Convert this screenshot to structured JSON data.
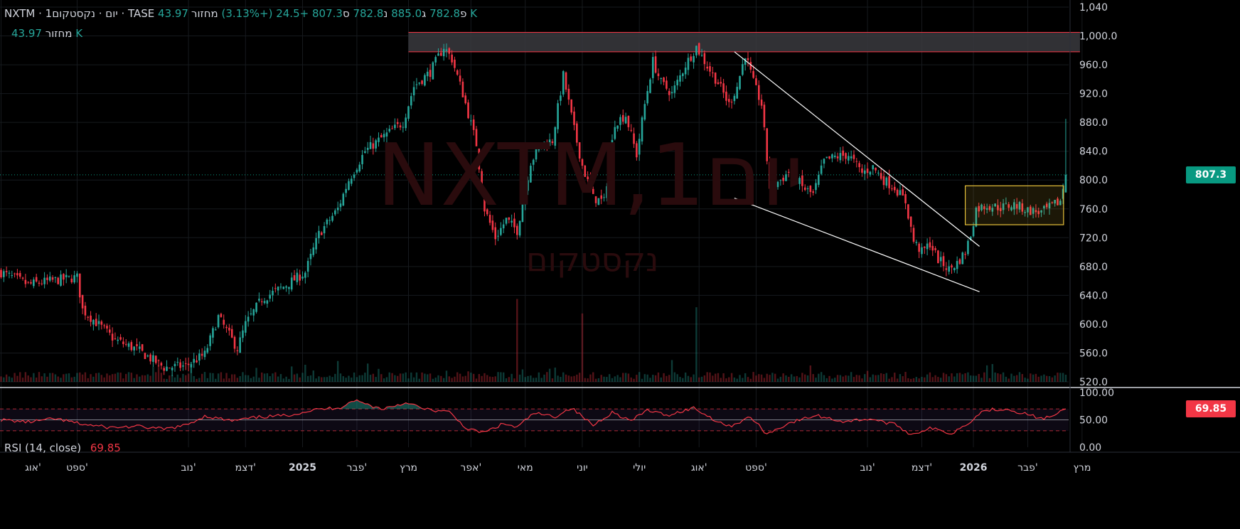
{
  "header": {
    "symbol": "NXTM · 1יום · נקסטקום · TASE",
    "open_prefix": "פ",
    "open": "782.8",
    "high_prefix": "ג",
    "high": "885.0",
    "low_prefix": "נ",
    "low": "782.8",
    "close_prefix": "ס",
    "close": "807.3",
    "change": "+24.5 (+3.13%)",
    "volume_label": "מחזור",
    "volume_value": "43.97 K"
  },
  "volume_legend": {
    "label": "מחזור",
    "value": "43.97 K"
  },
  "watermark": {
    "title": "NXTM,1יום",
    "subtitle": "נקסטקום"
  },
  "last_price_tag": "807.3",
  "rsi_legend": {
    "label": "RSI (14, close)",
    "value": "69.85"
  },
  "rsi_tag": "69.85",
  "colors": {
    "up": "#26a69a",
    "down": "#f23645",
    "rsi_line": "#f23645",
    "last_price_bg": "#089981",
    "rsi_tag_bg": "#f23645",
    "zone_border": "#f23645",
    "box_border": "#e6c13a",
    "trendline": "#ffffff"
  },
  "chart_data": [
    {
      "type": "candlestick",
      "title": "NXTM · 1יום · נקסטקום · TASE",
      "y_axis_ticks": [
        "1,040",
        "1,000.0",
        "960.0",
        "920.0",
        "880.0",
        "840.0",
        "800.0",
        "760.0",
        "720.0",
        "680.0",
        "640.0",
        "600.0",
        "560.0",
        "520.0"
      ],
      "ylim": [
        520,
        1040
      ],
      "x_axis_ticks": [
        "אוג'",
        "ספט'",
        "נוב'",
        "דצמ'",
        "2025",
        "פבר'",
        "מרץ",
        "אפר'",
        "מאי",
        "יוני",
        "יולי",
        "אוג'",
        "ספט'",
        "נוב'",
        "דצמ'",
        "2026",
        "פבר'",
        "מרץ"
      ],
      "x_tick_values": [
        0,
        28,
        69,
        90,
        111,
        131,
        150,
        173,
        193,
        214,
        235,
        257,
        278,
        319,
        339,
        358,
        378,
        398
      ],
      "last_close": 807.3,
      "key_points": [
        [
          0,
          672
        ],
        [
          10,
          655
        ],
        [
          18,
          660
        ],
        [
          28,
          665
        ],
        [
          30,
          620
        ],
        [
          42,
          578
        ],
        [
          50,
          565
        ],
        [
          60,
          540
        ],
        [
          68,
          542
        ],
        [
          75,
          558
        ],
        [
          80,
          610
        ],
        [
          87,
          566
        ],
        [
          90,
          600
        ],
        [
          96,
          635
        ],
        [
          104,
          652
        ],
        [
          112,
          672
        ],
        [
          117,
          725
        ],
        [
          124,
          760
        ],
        [
          128,
          800
        ],
        [
          134,
          840
        ],
        [
          140,
          858
        ],
        [
          148,
          880
        ],
        [
          152,
          930
        ],
        [
          158,
          950
        ],
        [
          163,
          985
        ],
        [
          166,
          968
        ],
        [
          170,
          920
        ],
        [
          175,
          850
        ],
        [
          178,
          760
        ],
        [
          182,
          720
        ],
        [
          186,
          745
        ],
        [
          190,
          730
        ],
        [
          195,
          825
        ],
        [
          199,
          850
        ],
        [
          203,
          855
        ],
        [
          207,
          945
        ],
        [
          211,
          870
        ],
        [
          214,
          820
        ],
        [
          218,
          775
        ],
        [
          222,
          770
        ],
        [
          226,
          880
        ],
        [
          230,
          890
        ],
        [
          234,
          835
        ],
        [
          237,
          905
        ],
        [
          240,
          965
        ],
        [
          243,
          935
        ],
        [
          247,
          920
        ],
        [
          252,
          960
        ],
        [
          256,
          985
        ],
        [
          260,
          958
        ],
        [
          264,
          935
        ],
        [
          268,
          905
        ],
        [
          271,
          930
        ],
        [
          274,
          975
        ],
        [
          277,
          935
        ],
        [
          280,
          905
        ],
        [
          283,
          790
        ],
        [
          287,
          800
        ],
        [
          291,
          815
        ],
        [
          295,
          790
        ],
        [
          299,
          780
        ],
        [
          303,
          826
        ],
        [
          307,
          832
        ],
        [
          312,
          835
        ],
        [
          317,
          810
        ],
        [
          321,
          818
        ],
        [
          325,
          800
        ],
        [
          329,
          790
        ],
        [
          333,
          770
        ],
        [
          336,
          715
        ],
        [
          339,
          700
        ],
        [
          342,
          712
        ],
        [
          345,
          690
        ],
        [
          349,
          676
        ],
        [
          352,
          685
        ],
        [
          355,
          700
        ],
        [
          357,
          725
        ],
        [
          359,
          760
        ],
        [
          363,
          765
        ],
        [
          368,
          762
        ],
        [
          373,
          766
        ],
        [
          378,
          758
        ],
        [
          383,
          755
        ],
        [
          387,
          764
        ],
        [
          390,
          771
        ],
        [
          392,
          807.3
        ]
      ],
      "key_point_units": [
        "bar index",
        "price"
      ],
      "last_bar_high": 885.0,
      "volume_spike_bars": [
        190,
        214,
        256
      ],
      "annotations": [
        {
          "type": "resistance_zone",
          "from_x": 150,
          "to_x": 392,
          "y_low": 978,
          "y_high": 1005
        },
        {
          "type": "trendline",
          "x1": 270,
          "y1": 978,
          "x2": 355,
          "y2": 708
        },
        {
          "type": "trendline",
          "x1": 270,
          "y1": 775,
          "x2": 355,
          "y2": 645
        },
        {
          "type": "range_box",
          "from_x": 355,
          "to_x": 387,
          "y_low": 738,
          "y_high": 792
        }
      ]
    },
    {
      "type": "line",
      "title": "RSI (14, close)",
      "y_axis_ticks": [
        "100.00",
        "50.00",
        "0.00"
      ],
      "ylim": [
        0,
        100
      ],
      "levels": [
        70,
        50,
        30
      ],
      "last_value": 69.85,
      "key_points": [
        [
          0,
          50
        ],
        [
          10,
          46
        ],
        [
          20,
          52
        ],
        [
          30,
          42
        ],
        [
          40,
          36
        ],
        [
          50,
          38
        ],
        [
          60,
          33
        ],
        [
          68,
          40
        ],
        [
          75,
          57
        ],
        [
          85,
          48
        ],
        [
          95,
          55
        ],
        [
          105,
          58
        ],
        [
          115,
          68
        ],
        [
          125,
          73
        ],
        [
          130,
          86
        ],
        [
          140,
          70
        ],
        [
          150,
          82
        ],
        [
          155,
          70
        ],
        [
          165,
          64
        ],
        [
          172,
          32
        ],
        [
          178,
          27
        ],
        [
          185,
          43
        ],
        [
          190,
          36
        ],
        [
          196,
          62
        ],
        [
          204,
          56
        ],
        [
          210,
          72
        ],
        [
          218,
          40
        ],
        [
          225,
          64
        ],
        [
          232,
          48
        ],
        [
          238,
          68
        ],
        [
          245,
          58
        ],
        [
          255,
          72
        ],
        [
          262,
          52
        ],
        [
          268,
          38
        ],
        [
          276,
          55
        ],
        [
          282,
          24
        ],
        [
          290,
          44
        ],
        [
          300,
          58
        ],
        [
          310,
          47
        ],
        [
          320,
          52
        ],
        [
          330,
          40
        ],
        [
          335,
          23
        ],
        [
          342,
          35
        ],
        [
          350,
          25
        ],
        [
          357,
          48
        ],
        [
          362,
          68
        ],
        [
          370,
          70
        ],
        [
          378,
          60
        ],
        [
          383,
          52
        ],
        [
          388,
          58
        ],
        [
          392,
          69.85
        ]
      ],
      "key_point_units": [
        "bar index",
        "RSI"
      ]
    }
  ]
}
